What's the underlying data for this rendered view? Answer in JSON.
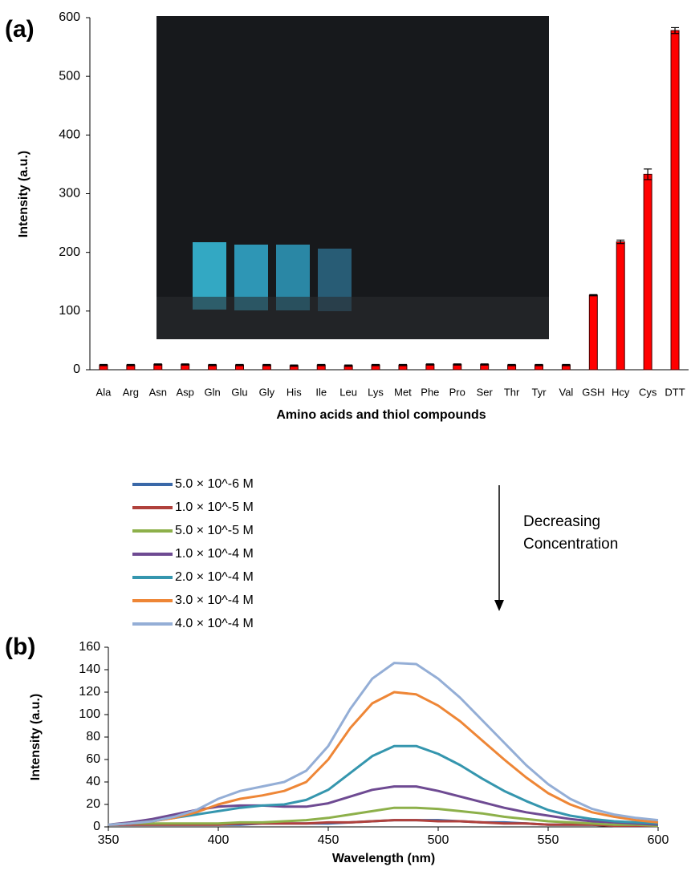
{
  "chart_data": [
    {
      "type": "bar",
      "panel_label": "(a)",
      "x_label": "Amino acids and thiol compounds",
      "y_label": "Intensity (a.u.)",
      "categories": [
        "Ala",
        "Arg",
        "Asn",
        "Asp",
        "Gln",
        "Glu",
        "Gly",
        "His",
        "Ile",
        "Leu",
        "Lys",
        "Met",
        "Phe",
        "Pro",
        "Ser",
        "Thr",
        "Tyr",
        "Val",
        "GSH",
        "Hcy",
        "Cys",
        "DTT"
      ],
      "values": [
        8,
        8,
        9,
        9,
        8,
        8,
        8,
        7,
        8,
        7,
        8,
        8,
        9,
        9,
        9,
        8,
        8,
        8,
        127,
        218,
        333,
        578
      ],
      "errors": [
        1,
        1,
        1,
        1,
        1,
        1,
        1,
        1,
        1,
        1,
        1,
        1,
        1,
        1,
        1,
        1,
        1,
        1,
        1,
        3,
        9,
        5
      ],
      "color": "#ff0000",
      "ylim": [
        0,
        600
      ],
      "yticks": [
        0,
        100,
        200,
        300,
        400,
        500,
        600
      ]
    },
    {
      "type": "line",
      "panel_label": "(b)",
      "x_label": "Wavelength (nm)",
      "y_label": "Intensity (a.u.)",
      "annotation": [
        "Decreasing",
        "Concentration"
      ],
      "x": [
        350,
        360,
        370,
        380,
        390,
        400,
        410,
        420,
        430,
        440,
        450,
        460,
        470,
        480,
        490,
        500,
        510,
        520,
        530,
        540,
        550,
        560,
        570,
        580,
        590,
        600
      ],
      "xlim": [
        350,
        600
      ],
      "xticks": [
        350,
        400,
        450,
        500,
        550,
        600
      ],
      "ylim": [
        0,
        160
      ],
      "yticks": [
        0,
        20,
        40,
        60,
        80,
        100,
        120,
        140,
        160
      ],
      "series": [
        {
          "name": "5.0 × 10^-6 M",
          "color": "#3a68a8",
          "values": [
            2,
            2,
            2,
            2,
            2,
            2,
            2,
            3,
            3,
            3,
            3,
            4,
            5,
            6,
            6,
            6,
            5,
            4,
            4,
            3,
            2,
            2,
            2,
            1,
            1,
            1
          ]
        },
        {
          "name": "1.0 × 10^-5 M",
          "color": "#b0413c",
          "values": [
            2,
            2,
            2,
            2,
            2,
            2,
            3,
            3,
            3,
            3,
            4,
            4,
            5,
            6,
            6,
            5,
            5,
            4,
            3,
            3,
            2,
            2,
            2,
            1,
            1,
            1
          ]
        },
        {
          "name": "5.0 × 10^-5 M",
          "color": "#8db04a",
          "values": [
            2,
            3,
            3,
            3,
            3,
            3,
            4,
            4,
            5,
            6,
            8,
            11,
            14,
            17,
            17,
            16,
            14,
            12,
            9,
            7,
            5,
            4,
            3,
            2,
            2,
            1
          ]
        },
        {
          "name": "1.0 × 10^-4 M",
          "color": "#6e4a92",
          "values": [
            2,
            4,
            7,
            11,
            15,
            18,
            19,
            19,
            18,
            18,
            21,
            27,
            33,
            36,
            36,
            32,
            27,
            22,
            17,
            13,
            10,
            7,
            5,
            4,
            3,
            2
          ]
        },
        {
          "name": "2.0 × 10^-4 M",
          "color": "#3596ae",
          "values": [
            2,
            3,
            5,
            8,
            11,
            14,
            17,
            19,
            20,
            24,
            33,
            48,
            63,
            72,
            72,
            65,
            55,
            43,
            32,
            23,
            15,
            10,
            7,
            5,
            4,
            3
          ]
        },
        {
          "name": "3.0 × 10^-4 M",
          "color": "#ee8636",
          "values": [
            2,
            3,
            5,
            8,
            13,
            20,
            25,
            28,
            32,
            40,
            60,
            88,
            110,
            120,
            118,
            108,
            94,
            77,
            60,
            44,
            30,
            20,
            13,
            9,
            6,
            4
          ]
        },
        {
          "name": "4.0 × 10^-4 M",
          "color": "#94aed6",
          "values": [
            2,
            3,
            5,
            9,
            15,
            25,
            32,
            36,
            40,
            50,
            72,
            105,
            132,
            146,
            145,
            132,
            115,
            95,
            75,
            55,
            38,
            25,
            16,
            11,
            8,
            6
          ]
        }
      ]
    }
  ]
}
